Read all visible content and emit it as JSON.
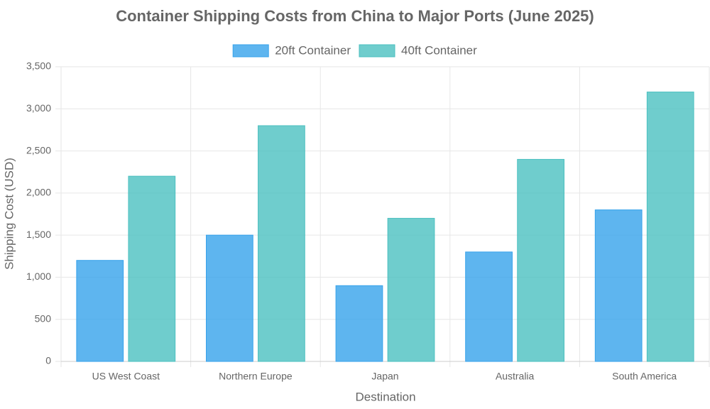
{
  "chart_data": {
    "type": "bar",
    "title": "Container Shipping Costs from China to Major Ports (June 2025)",
    "x_label": "Destination",
    "y_label": "Shipping Cost (USD)",
    "categories": [
      "US West Coast",
      "Northern Europe",
      "Japan",
      "Australia",
      "South America"
    ],
    "series": [
      {
        "name": "20ft Container",
        "color": "#36a2eb",
        "values": [
          1200,
          1500,
          900,
          1300,
          1800
        ]
      },
      {
        "name": "40ft Container",
        "color": "#4bc0c0",
        "values": [
          2200,
          2800,
          1700,
          2400,
          3200
        ]
      }
    ],
    "ylim": [
      0,
      3500
    ],
    "yticks": [
      0,
      500,
      {
        "value": 1000,
        "label": "1,000"
      },
      {
        "value": 1500,
        "label": "1,500"
      },
      {
        "value": 2000,
        "label": "2,000"
      },
      {
        "value": 2500,
        "label": "2,500"
      },
      {
        "value": 3000,
        "label": "3,000"
      },
      {
        "value": 3500,
        "label": "3,500"
      }
    ],
    "grid": true,
    "legend": "top"
  }
}
